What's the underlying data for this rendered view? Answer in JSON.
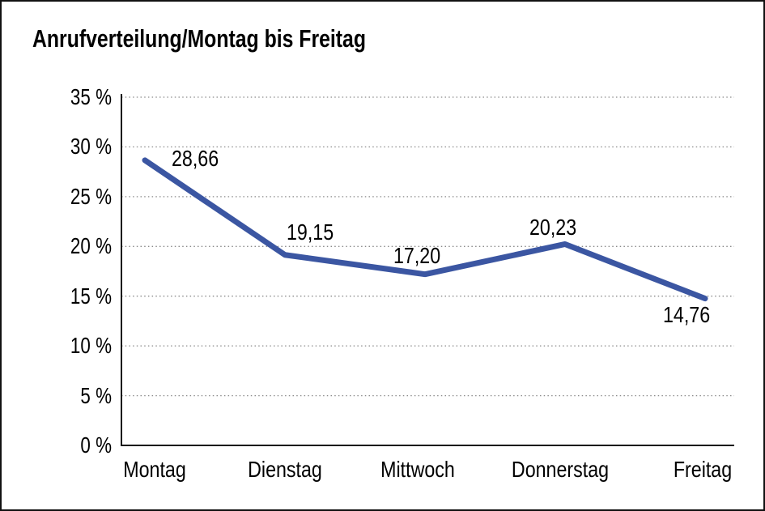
{
  "window": {
    "background": "#ffffff",
    "border_color": "#111111"
  },
  "chart_data": {
    "type": "line",
    "title": "Anrufverteilung/Montag bis Freitag",
    "categories": [
      "Montag",
      "Dienstag",
      "Mittwoch",
      "Donnerstag",
      "Freitag"
    ],
    "values": [
      28.66,
      19.15,
      17.2,
      20.23,
      14.76
    ],
    "value_labels": [
      "28,66",
      "19,15",
      "17,20",
      "20,23",
      "14,76"
    ],
    "ytick_labels": [
      "35 %",
      "30 %",
      "25 %",
      "20 %",
      "15 %",
      "10 %",
      "5 %",
      "0 %"
    ],
    "ylim": [
      0,
      35
    ],
    "ytick_step": 5,
    "xlabel": "",
    "ylabel": "",
    "legend": "none",
    "grid": "horizontal-dotted",
    "grid_color": "#8a8a8a",
    "axis_color": "#111111",
    "line_color": "#3B56A2",
    "line_width": 7
  }
}
